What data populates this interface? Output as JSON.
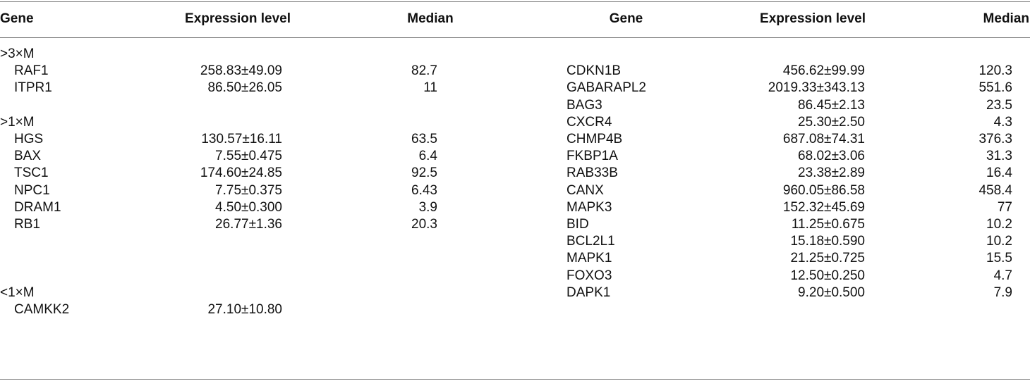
{
  "table": {
    "headers": [
      "Gene",
      "Expression level",
      "Median",
      "Gene",
      "Expression level",
      "Median"
    ],
    "left": [
      {
        "type": "group",
        "label": ">3×M"
      },
      {
        "type": "row",
        "gene": "RAF1",
        "expr": "258.83±49.09",
        "median": "82.7"
      },
      {
        "type": "row",
        "gene": "ITPR1",
        "expr": "86.50±26.05",
        "median": "11"
      },
      {
        "type": "blank"
      },
      {
        "type": "group",
        "label": ">1×M"
      },
      {
        "type": "row",
        "gene": "HGS",
        "expr": "130.57±16.11",
        "median": "63.5"
      },
      {
        "type": "row",
        "gene": "BAX",
        "expr": "7.55±0.475",
        "median": "6.4"
      },
      {
        "type": "row",
        "gene": "TSC1",
        "expr": "174.60±24.85",
        "median": "92.5"
      },
      {
        "type": "row",
        "gene": "NPC1",
        "expr": "7.75±0.375",
        "median": "6.43"
      },
      {
        "type": "row",
        "gene": "DRAM1",
        "expr": "4.50±0.300",
        "median": "3.9"
      },
      {
        "type": "row",
        "gene": "RB1",
        "expr": "26.77±1.36",
        "median": "20.3"
      },
      {
        "type": "blank"
      },
      {
        "type": "blank"
      },
      {
        "type": "blank"
      },
      {
        "type": "group",
        "label": "<1×M"
      },
      {
        "type": "row",
        "gene": "CAMKK2",
        "expr": "27.10±10.80",
        "median": ""
      }
    ],
    "right": [
      {
        "gene": "CDKN1B",
        "expr": "456.62±99.99",
        "median": "120.3"
      },
      {
        "gene": "GABARAPL2",
        "expr": "2019.33±343.13",
        "median": "551.6"
      },
      {
        "gene": "BAG3",
        "expr": "86.45±2.13",
        "median": "23.5"
      },
      {
        "gene": "CXCR4",
        "expr": "25.30±2.50",
        "median": "4.3"
      },
      {
        "gene": "CHMP4B",
        "expr": "687.08±74.31",
        "median": "376.3"
      },
      {
        "gene": "FKBP1A",
        "expr": "68.02±3.06",
        "median": "31.3"
      },
      {
        "gene": "RAB33B",
        "expr": "23.38±2.89",
        "median": "16.4"
      },
      {
        "gene": "CANX",
        "expr": "960.05±86.58",
        "median": "458.4"
      },
      {
        "gene": "MAPK3",
        "expr": "152.32±45.69",
        "median": "77"
      },
      {
        "gene": "BID",
        "expr": "11.25±0.675",
        "median": "10.2"
      },
      {
        "gene": "BCL2L1",
        "expr": "15.18±0.590",
        "median": "10.2"
      },
      {
        "gene": "MAPK1",
        "expr": "21.25±0.725",
        "median": "15.5"
      },
      {
        "gene": "FOXO3",
        "expr": "12.50±0.250",
        "median": "4.7"
      },
      {
        "gene": "DAPK1",
        "expr": "9.20±0.500",
        "median": "7.9"
      }
    ]
  }
}
